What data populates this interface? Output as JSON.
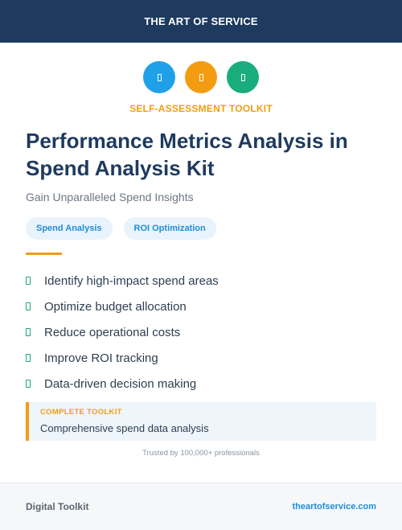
{
  "header": {
    "title": "THE ART OF SERVICE"
  },
  "icons": [
    {
      "name": "blue-badge-icon",
      "color": "#1ea1e8"
    },
    {
      "name": "orange-badge-icon",
      "color": "#f39c12"
    },
    {
      "name": "green-badge-icon",
      "color": "#1aac7c"
    }
  ],
  "eyebrow": "SELF-ASSESSMENT TOOLKIT",
  "title": "Performance Metrics Analysis in Spend Analysis Kit",
  "subtitle": "Gain Unparalleled Spend Insights",
  "tags": [
    "Spend Analysis",
    "ROI Optimization"
  ],
  "benefits": [
    "Identify high-impact spend areas",
    "Optimize budget allocation",
    "Reduce operational costs",
    "Improve ROI tracking",
    "Data-driven decision making"
  ],
  "callout": {
    "label": "COMPLETE TOOLKIT",
    "text": "Comprehensive spend data analysis"
  },
  "trust": "Trusted by 100,000+ professionals",
  "footer": {
    "left": "Digital Toolkit",
    "right": "theartofservice.com"
  },
  "colors": {
    "navy": "#1e3a5f",
    "accent_orange": "#f39c12",
    "accent_blue": "#1f8fd6",
    "accent_green": "#1aa57a"
  }
}
